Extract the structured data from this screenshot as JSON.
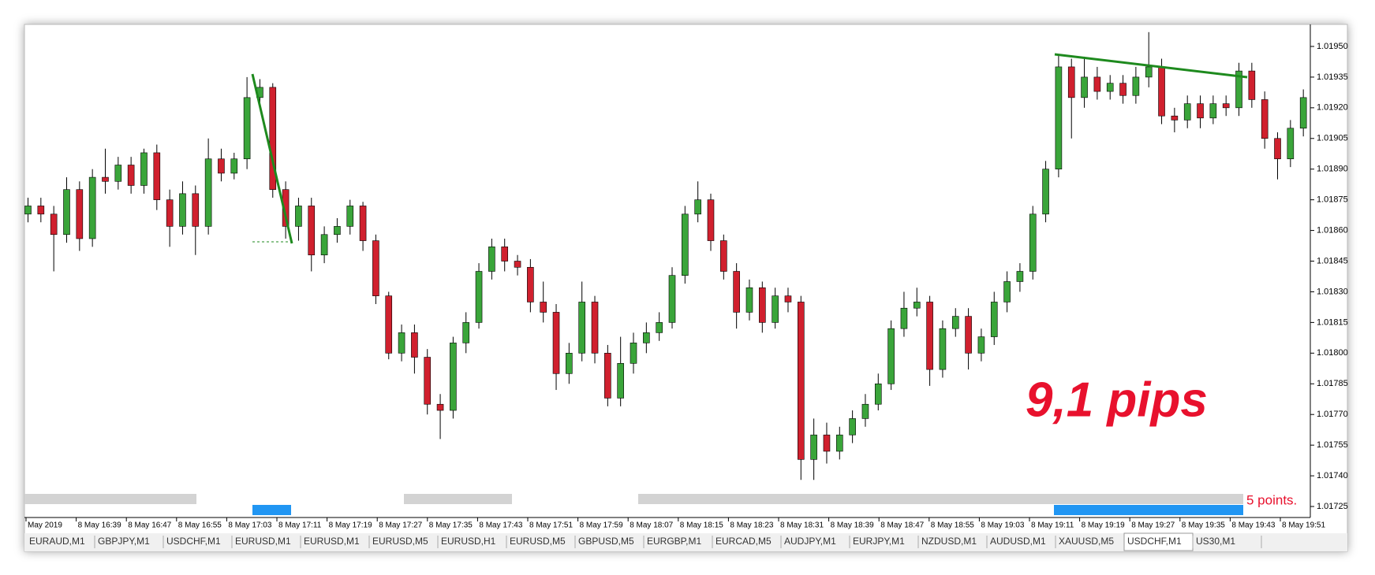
{
  "chart_data": {
    "type": "candlestick",
    "up_color": "#3aa53a",
    "down_color": "#d0202e",
    "ylim": [
      1.0172,
      1.0196
    ],
    "yticks": [
      {
        "value": 1.0195,
        "label": "1.01950"
      },
      1.01935,
      {
        "value": 1.0192,
        "label": "1.01920"
      },
      1.01905,
      {
        "value": 1.0189,
        "label": "1.01890"
      },
      1.01875,
      {
        "value": 1.0186,
        "label": "1.01860"
      },
      1.01845,
      {
        "value": 1.0183,
        "label": "1.01830"
      },
      1.01815,
      {
        "value": 1.018,
        "label": "1.01800"
      },
      1.01785,
      {
        "value": 1.0177,
        "label": "1.01770"
      },
      1.01755,
      {
        "value": 1.0174,
        "label": "1.01740"
      },
      1.01725
    ],
    "x_labels": [
      "May 2019",
      "8 May 16:39",
      "8 May 16:47",
      "8 May 16:55",
      "8 May 17:03",
      "8 May 17:11",
      "8 May 17:19",
      "8 May 17:27",
      "8 May 17:35",
      "8 May 17:43",
      "8 May 17:51",
      "8 May 17:59",
      "8 May 18:07",
      "8 May 18:15",
      "8 May 18:23",
      "8 May 18:31",
      "8 May 18:39",
      "8 May 18:47",
      "8 May 18:55",
      "8 May 19:03",
      "8 May 19:11",
      "8 May 19:19",
      "8 May 19:27",
      "8 May 19:35",
      "8 May 19:43",
      "8 May 19:51"
    ],
    "open": [
      1.01868,
      1.01872,
      1.01868,
      1.01858,
      1.0188,
      1.01856,
      1.01886,
      1.01884,
      1.01892,
      1.01882,
      1.01898,
      1.01875,
      1.01862,
      1.01878,
      1.01862,
      1.01895,
      1.01888,
      1.01895,
      1.01925,
      1.0193,
      1.0188,
      1.01862,
      1.01872,
      1.01848,
      1.01858,
      1.01862,
      1.01872,
      1.01855,
      1.01828,
      1.018,
      1.0181,
      1.01798,
      1.01775,
      1.01772,
      1.01805,
      1.01815,
      1.0184,
      1.01852,
      1.01845,
      1.01842,
      1.01825,
      1.0182,
      1.0179,
      1.018,
      1.01825,
      1.018,
      1.01778,
      1.01795,
      1.01805,
      1.0181,
      1.01815,
      1.01838,
      1.01868,
      1.01875,
      1.01855,
      1.0184,
      1.0182,
      1.01832,
      1.01815,
      1.01828,
      1.01825,
      1.01748,
      1.0176,
      1.01752,
      1.0176,
      1.01768,
      1.01775,
      1.01785,
      1.01812,
      1.01822,
      1.01825,
      1.01792,
      1.01812,
      1.01818,
      1.018,
      1.01808,
      1.01825,
      1.01835,
      1.0184,
      1.01868,
      1.0189,
      1.0194,
      1.01925,
      1.01935,
      1.01928,
      1.01932,
      1.01926,
      1.01935,
      1.0194,
      1.01916,
      1.01914,
      1.01922,
      1.01915,
      1.01922,
      1.0192,
      1.01938,
      1.01924,
      1.01905,
      1.01895,
      1.0191
    ],
    "high": [
      1.01876,
      1.01876,
      1.01872,
      1.01886,
      1.01884,
      1.0189,
      1.019,
      1.01896,
      1.01896,
      1.019,
      1.01902,
      1.0188,
      1.01884,
      1.01882,
      1.01905,
      1.019,
      1.01898,
      1.01935,
      1.01934,
      1.01932,
      1.01884,
      1.01876,
      1.01876,
      1.01862,
      1.01866,
      1.01875,
      1.01874,
      1.01858,
      1.0183,
      1.01814,
      1.01814,
      1.01802,
      1.0178,
      1.01808,
      1.0182,
      1.01844,
      1.01856,
      1.01856,
      1.01848,
      1.01846,
      1.01835,
      1.01824,
      1.01805,
      1.01835,
      1.01828,
      1.01804,
      1.01808,
      1.0181,
      1.01815,
      1.0182,
      1.01842,
      1.01872,
      1.01884,
      1.01878,
      1.01858,
      1.01844,
      1.01836,
      1.01835,
      1.01832,
      1.01832,
      1.01828,
      1.01768,
      1.01766,
      1.01764,
      1.01772,
      1.0178,
      1.0179,
      1.01816,
      1.0183,
      1.01832,
      1.01828,
      1.01816,
      1.01822,
      1.01822,
      1.01812,
      1.0183,
      1.0184,
      1.01844,
      1.01872,
      1.01894,
      1.01946,
      1.01944,
      1.01945,
      1.0194,
      1.01936,
      1.01936,
      1.0194,
      1.01957,
      1.01944,
      1.0192,
      1.01926,
      1.01926,
      1.01926,
      1.01926,
      1.01942,
      1.01942,
      1.01928,
      1.01908,
      1.01914,
      1.01929
    ],
    "low": [
      1.01864,
      1.01864,
      1.0184,
      1.01854,
      1.0185,
      1.01852,
      1.01878,
      1.0188,
      1.01878,
      1.01878,
      1.0187,
      1.01852,
      1.01858,
      1.01848,
      1.01858,
      1.01884,
      1.01885,
      1.0189,
      1.0192,
      1.01876,
      1.01856,
      1.01855,
      1.0184,
      1.01844,
      1.01854,
      1.01858,
      1.0185,
      1.01824,
      1.01797,
      1.01796,
      1.0179,
      1.0177,
      1.01758,
      1.01768,
      1.018,
      1.01812,
      1.01836,
      1.0184,
      1.01838,
      1.0182,
      1.01815,
      1.01782,
      1.01785,
      1.01796,
      1.01795,
      1.01774,
      1.01774,
      1.0179,
      1.018,
      1.01806,
      1.01812,
      1.01834,
      1.01864,
      1.0185,
      1.01836,
      1.01812,
      1.01816,
      1.0181,
      1.01812,
      1.0182,
      1.01738,
      1.01738,
      1.01746,
      1.01748,
      1.01756,
      1.01764,
      1.01772,
      1.01782,
      1.01808,
      1.01818,
      1.01784,
      1.01788,
      1.01808,
      1.01792,
      1.01796,
      1.01804,
      1.0182,
      1.0183,
      1.01836,
      1.01864,
      1.01886,
      1.01905,
      1.0192,
      1.01924,
      1.01924,
      1.01922,
      1.01922,
      1.0193,
      1.01912,
      1.01908,
      1.0191,
      1.0191,
      1.01912,
      1.01916,
      1.01916,
      1.0192,
      1.019,
      1.01885,
      1.01891,
      1.01906
    ],
    "close": [
      1.01872,
      1.01868,
      1.01858,
      1.0188,
      1.01856,
      1.01886,
      1.01884,
      1.01892,
      1.01882,
      1.01898,
      1.01875,
      1.01862,
      1.01878,
      1.01862,
      1.01895,
      1.01888,
      1.01895,
      1.01925,
      1.0193,
      1.0188,
      1.01862,
      1.01872,
      1.01848,
      1.01858,
      1.01862,
      1.01872,
      1.01855,
      1.01828,
      1.018,
      1.0181,
      1.01798,
      1.01775,
      1.01772,
      1.01805,
      1.01815,
      1.0184,
      1.01852,
      1.01845,
      1.01842,
      1.01825,
      1.0182,
      1.0179,
      1.018,
      1.01825,
      1.018,
      1.01778,
      1.01795,
      1.01805,
      1.0181,
      1.01815,
      1.01838,
      1.01868,
      1.01875,
      1.01855,
      1.0184,
      1.0182,
      1.01832,
      1.01815,
      1.01828,
      1.01825,
      1.01748,
      1.0176,
      1.01752,
      1.0176,
      1.01768,
      1.01775,
      1.01785,
      1.01812,
      1.01822,
      1.01825,
      1.01792,
      1.01812,
      1.01818,
      1.018,
      1.01808,
      1.01825,
      1.01835,
      1.0184,
      1.01868,
      1.0189,
      1.0194,
      1.01925,
      1.01935,
      1.01928,
      1.01932,
      1.01926,
      1.01935,
      1.0194,
      1.01916,
      1.01914,
      1.01922,
      1.01915,
      1.01922,
      1.0192,
      1.01938,
      1.01924,
      1.01905,
      1.01895,
      1.0191,
      1.01925
    ],
    "annotation": "9,1 pips",
    "note": "5 points."
  },
  "tabs": [
    "EURAUD,M1",
    "GBPJPY,M1",
    "USDCHF,M1",
    "EURUSD,M1",
    "EURUSD,M1",
    "EURUSD,M5",
    "EURUSD,H1",
    "EURUSD,M5",
    "GBPUSD,M5",
    "EURGBP,M1",
    "EURCAD,M5",
    "AUDJPY,M1",
    "EURJPY,M1",
    "NZDUSD,M1",
    "AUDUSD,M1",
    "XAUUSD,M5",
    "USDCHF,M1",
    "US30,M1"
  ]
}
